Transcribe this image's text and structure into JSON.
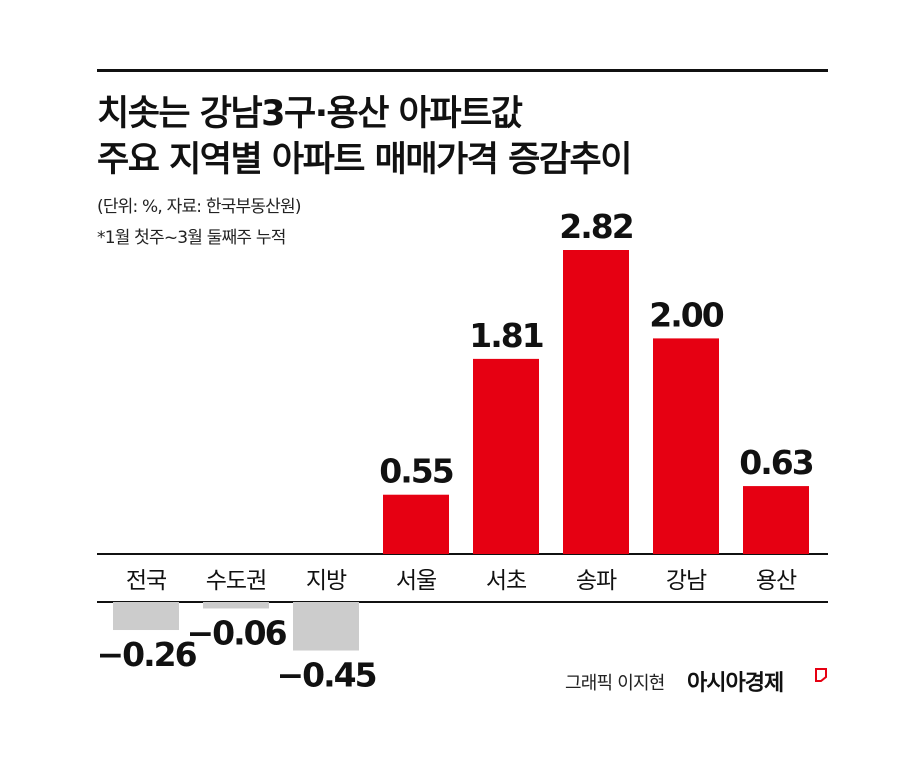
{
  "title_line1": "치솟는 강남3구·용산 아파트값",
  "title_line2": "주요 지역별 아파트 매매가격 증감추이",
  "unit_note": "(단위: %, 자료: 한국부동산원)",
  "period_note": "*1월 첫주~3월 둘째주 누적",
  "credit": "그래픽 이지현",
  "brand": "아시아경제",
  "colors": {
    "positive": "#e60012",
    "negative": "#cccccc",
    "axis": "#111111"
  },
  "chart_data": {
    "type": "bar",
    "categories": [
      "전국",
      "수도권",
      "지방",
      "서울",
      "서초",
      "송파",
      "강남",
      "용산"
    ],
    "values": [
      -0.26,
      -0.06,
      -0.45,
      0.55,
      1.81,
      2.82,
      2.0,
      0.63
    ],
    "value_labels": [
      "−0.26",
      "−0.06",
      "−0.45",
      "0.55",
      "1.81",
      "2.82",
      "2.00",
      "0.63"
    ],
    "grid": false,
    "legend": "none"
  }
}
